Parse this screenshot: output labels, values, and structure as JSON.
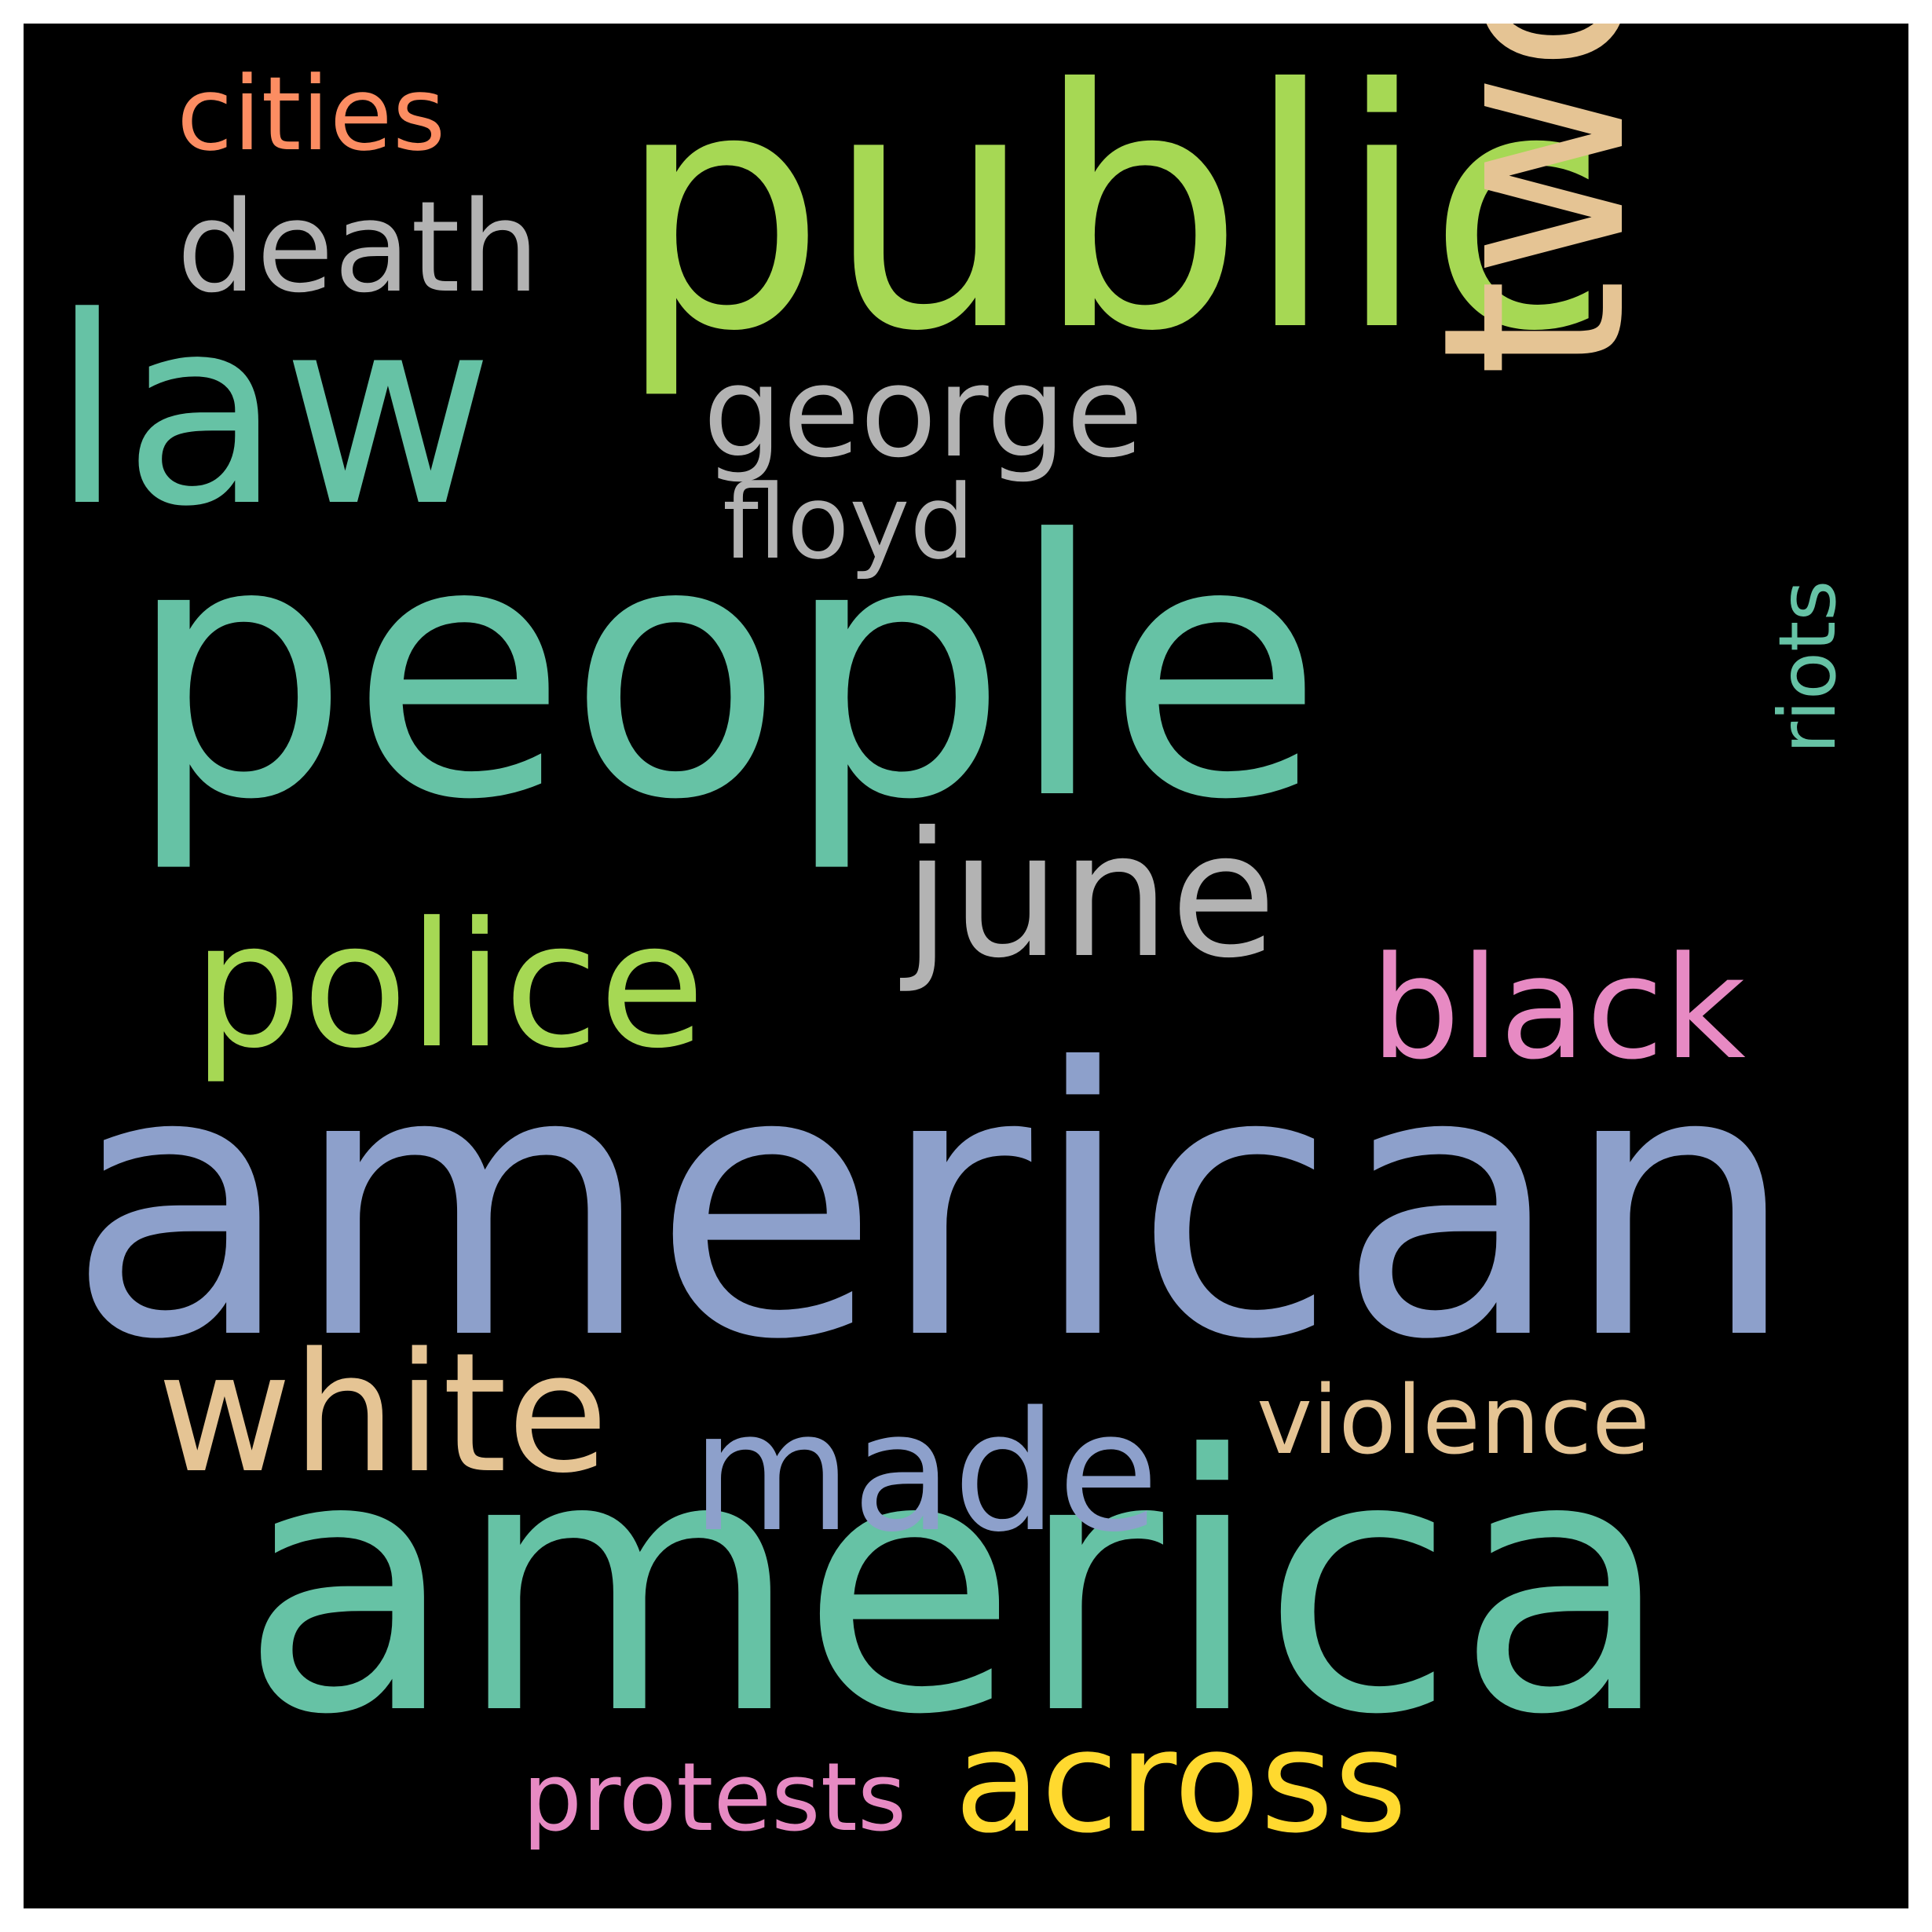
{
  "background_color": "#000000",
  "words": [
    {
      "id": "public",
      "text": "public",
      "color": "#a6d854"
    },
    {
      "id": "people",
      "text": "people",
      "color": "#66c2a5"
    },
    {
      "id": "american",
      "text": "american",
      "color": "#8da0cb"
    },
    {
      "id": "america",
      "text": "america",
      "color": "#66c2a5"
    },
    {
      "id": "law",
      "text": "law",
      "color": "#66c2a5"
    },
    {
      "id": "two",
      "text": "two",
      "color": "#e5c494"
    },
    {
      "id": "june",
      "text": "june",
      "color": "#b3b3b3"
    },
    {
      "id": "police",
      "text": "police",
      "color": "#a6d854"
    },
    {
      "id": "white",
      "text": "white",
      "color": "#e5c494"
    },
    {
      "id": "black",
      "text": "black",
      "color": "#e78ac3"
    },
    {
      "id": "made",
      "text": "made",
      "color": "#8da0cb"
    },
    {
      "id": "across",
      "text": "across",
      "color": "#ffd92f"
    },
    {
      "id": "death",
      "text": "death",
      "color": "#b3b3b3"
    },
    {
      "id": "george",
      "text": "george",
      "color": "#b3b3b3"
    },
    {
      "id": "floyd",
      "text": "floyd",
      "color": "#b3b3b3"
    },
    {
      "id": "cities",
      "text": "cities",
      "color": "#fc8d62"
    },
    {
      "id": "violence",
      "text": "violence",
      "color": "#e5c494"
    },
    {
      "id": "riots",
      "text": "riots",
      "color": "#66c2a5"
    },
    {
      "id": "protests",
      "text": "protests",
      "color": "#e78ac3"
    }
  ]
}
